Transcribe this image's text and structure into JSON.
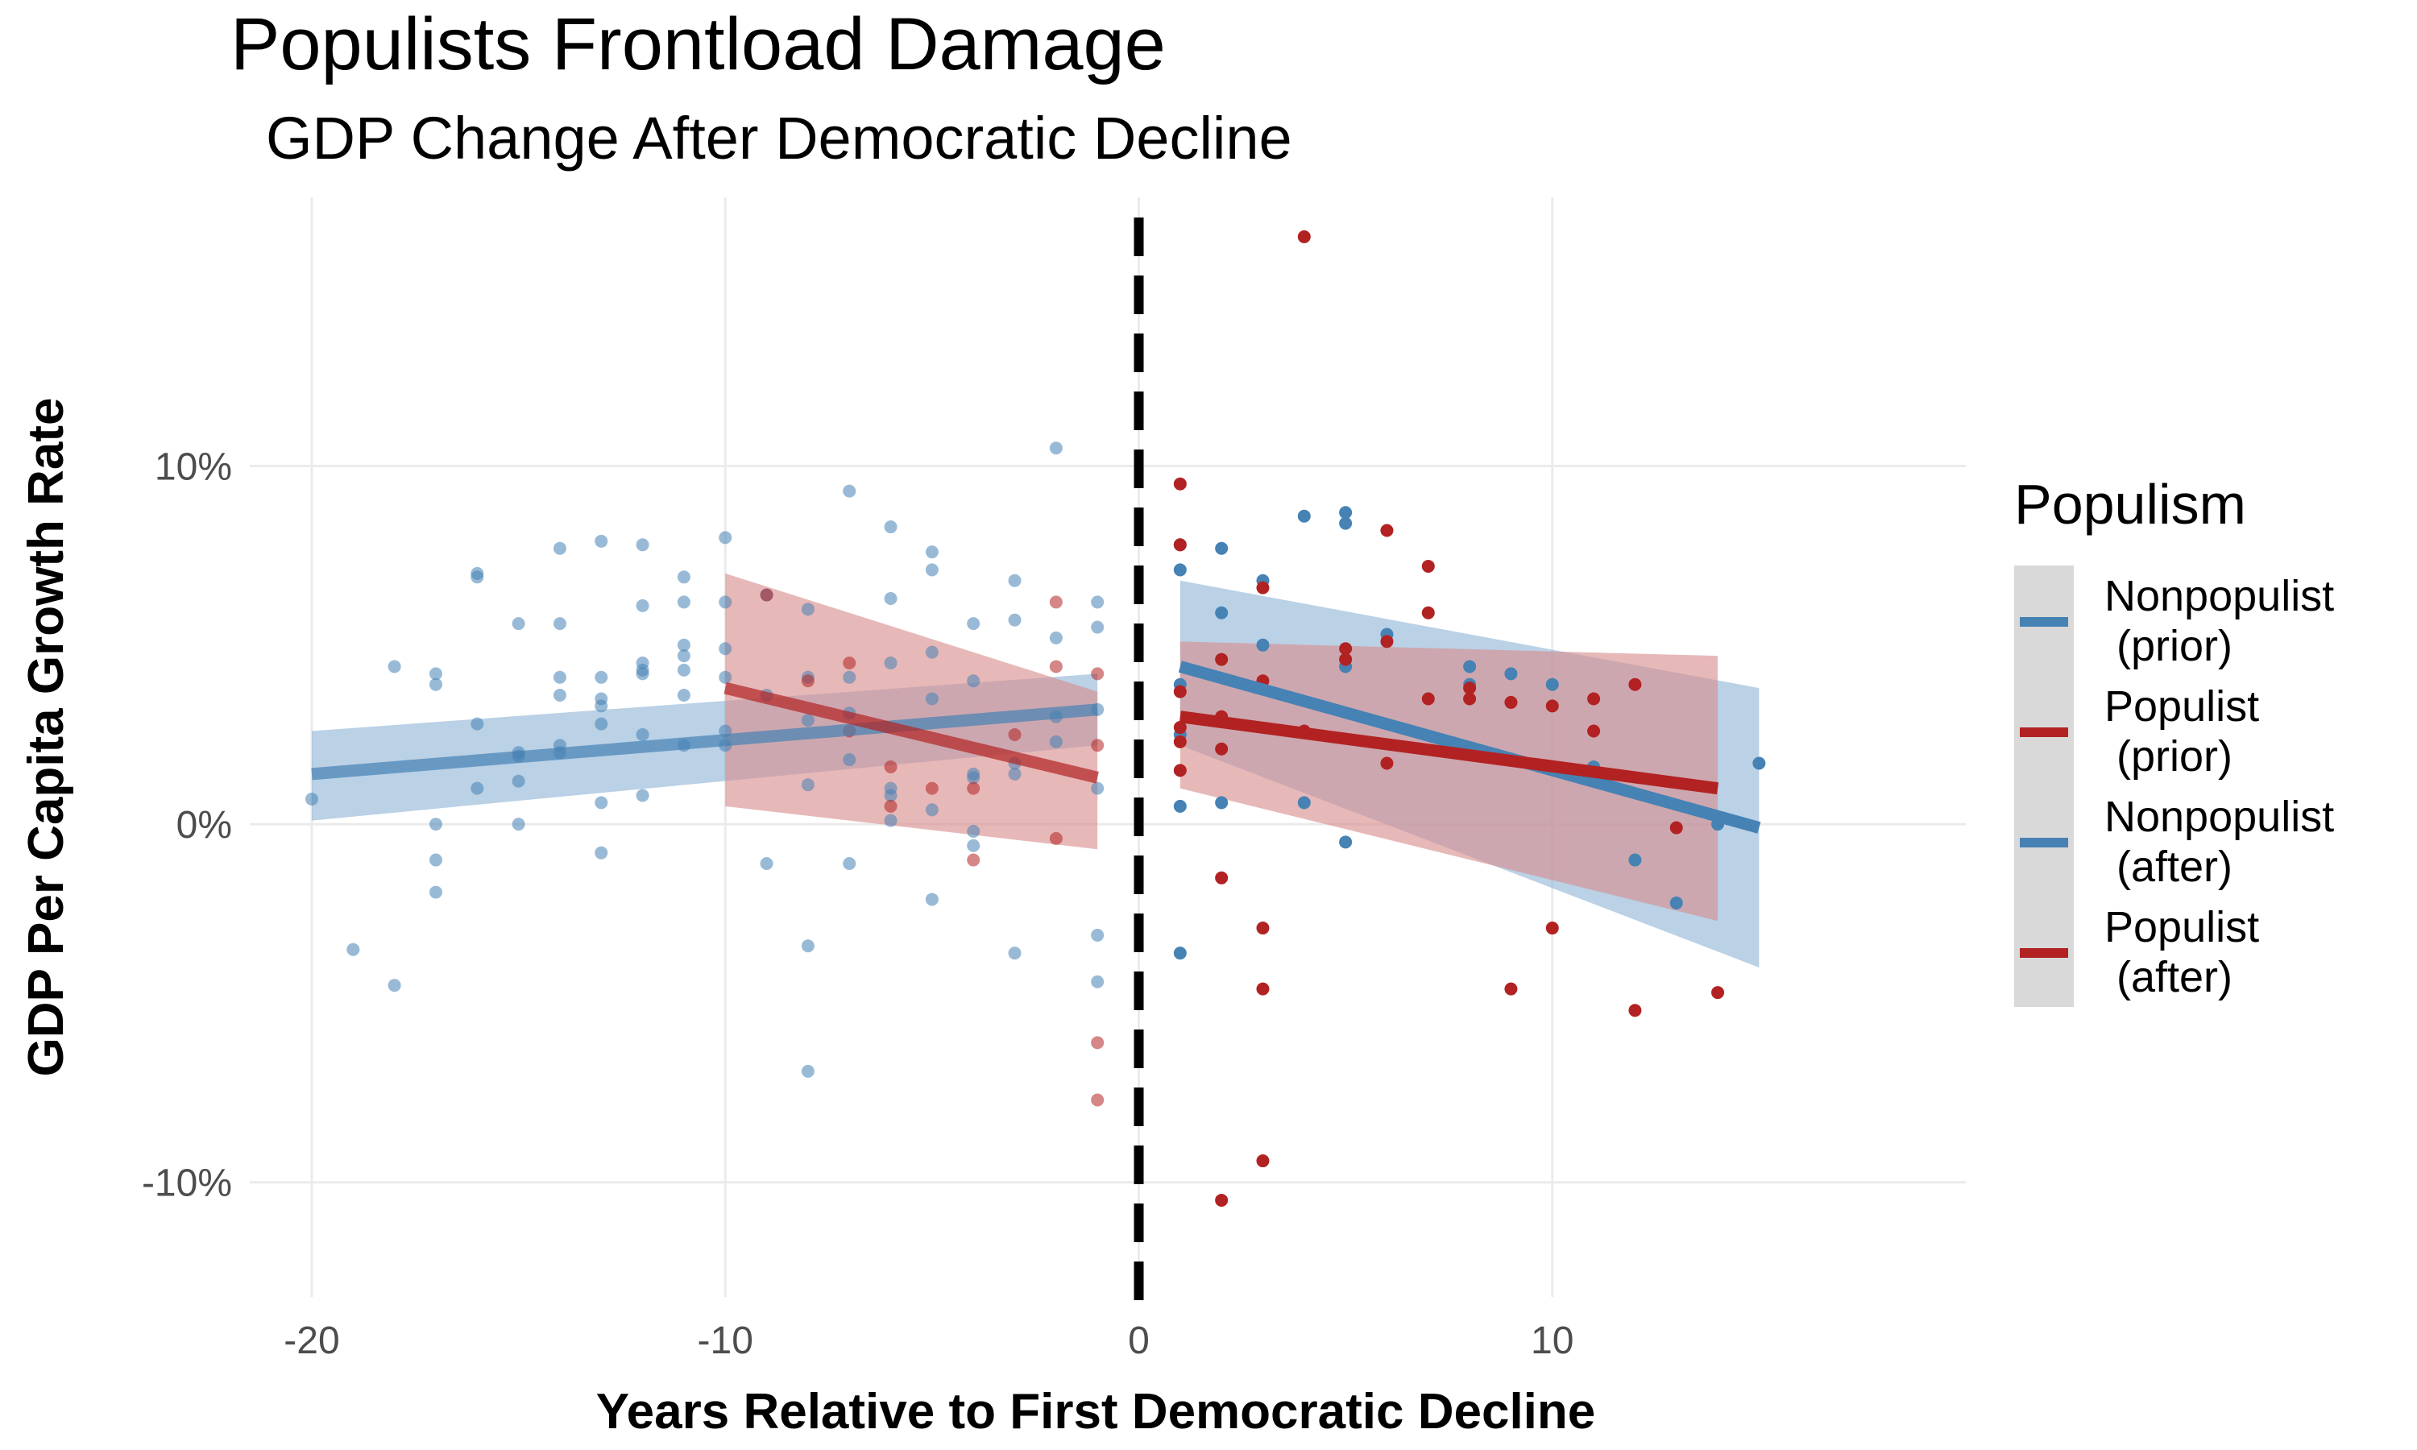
{
  "chart_data": {
    "type": "scatter",
    "title": "Populists Frontload Damage",
    "subtitle": "GDP Change After Democratic Decline",
    "xlabel": "Years Relative to First Democratic Decline",
    "ylabel": "GDP Per Capita Growth Rate",
    "xlim": [
      -21.5,
      20
    ],
    "ylim": [
      -13.2,
      17.5
    ],
    "x_ticks": [
      -20,
      -10,
      0,
      10
    ],
    "x_tick_labels": [
      "-20",
      "-10",
      "0",
      "10"
    ],
    "y_ticks": [
      -10,
      0,
      10
    ],
    "y_tick_labels": [
      "-10%",
      "0%",
      "10%"
    ],
    "grid": true,
    "reference_line": {
      "x": 0,
      "style": "dashed",
      "color": "#000000"
    },
    "legend": {
      "title": "Populism",
      "position": "right"
    },
    "colors": {
      "nonpopulist": "#4682b4",
      "populist": "#b22222",
      "ribbon_nonpopulist": "#8fb4d6",
      "ribbon_populist": "#d98c8c"
    },
    "series": [
      {
        "name": "Nonpopulist\n (prior)",
        "color": "#4682b4",
        "point_opacity": 0.55,
        "x": [
          -20,
          -19,
          -18,
          -18,
          -17,
          -17,
          -17,
          -17,
          -17,
          -16,
          -16,
          -16,
          -16,
          -15,
          -15,
          -15,
          -15,
          -15,
          -14,
          -14,
          -14,
          -14,
          -14,
          -14,
          -13,
          -13,
          -13,
          -13,
          -13,
          -13,
          -13,
          -12,
          -12,
          -12,
          -12,
          -12,
          -12,
          -12,
          -11,
          -11,
          -11,
          -11,
          -11,
          -11,
          -11,
          -10,
          -10,
          -10,
          -10,
          -10,
          -10,
          -9,
          -9,
          -9,
          -8,
          -8,
          -8,
          -8,
          -8,
          -8,
          -7,
          -7,
          -7,
          -7,
          -7,
          -6,
          -6,
          -6,
          -6,
          -6,
          -6,
          -5,
          -5,
          -5,
          -5,
          -5,
          -5,
          -4,
          -4,
          -4,
          -4,
          -4,
          -4,
          -3,
          -3,
          -3,
          -3,
          -3,
          -2,
          -2,
          -2,
          -2,
          -1,
          -1,
          -1,
          -1,
          -1,
          -1
        ],
        "y": [
          0.7,
          -3.5,
          -4.5,
          4.4,
          4.2,
          3.9,
          0.0,
          -1.0,
          -1.9,
          7.0,
          6.9,
          2.8,
          1.0,
          5.6,
          2.0,
          1.9,
          1.2,
          0.0,
          7.7,
          5.6,
          4.1,
          3.6,
          2.2,
          2.0,
          7.9,
          4.1,
          3.5,
          3.3,
          2.8,
          0.6,
          -0.8,
          7.8,
          6.1,
          4.5,
          4.3,
          4.2,
          2.5,
          0.8,
          6.9,
          6.2,
          5.0,
          4.7,
          4.3,
          3.6,
          2.2,
          8.0,
          6.2,
          4.9,
          4.1,
          2.6,
          2.2,
          6.4,
          3.6,
          -1.1,
          6.0,
          4.1,
          2.9,
          1.1,
          -3.4,
          -6.9,
          9.3,
          4.1,
          3.1,
          1.8,
          -1.1,
          8.3,
          6.3,
          4.5,
          1.0,
          0.8,
          0.1,
          7.6,
          7.1,
          4.8,
          3.5,
          0.4,
          -2.1,
          5.6,
          4.0,
          1.4,
          1.3,
          -0.2,
          -0.6,
          6.8,
          5.7,
          1.7,
          1.4,
          -3.6,
          10.5,
          5.2,
          3.0,
          2.3,
          6.2,
          5.5,
          1.0,
          -3.1,
          -4.4,
          3.2
        ]
      },
      {
        "name": "Populist\n (prior)",
        "color": "#b22222",
        "point_opacity": 0.55,
        "x": [
          -9,
          -8,
          -7,
          -7,
          -6,
          -6,
          -5,
          -4,
          -4,
          -3,
          -2,
          -2,
          -2,
          -1,
          -1,
          -1,
          -1
        ],
        "y": [
          6.4,
          4.0,
          4.5,
          2.6,
          1.6,
          0.5,
          1.0,
          1.0,
          -1.0,
          2.5,
          6.2,
          4.4,
          -0.4,
          4.2,
          2.2,
          -6.1,
          -7.7
        ]
      },
      {
        "name": "Nonpopulist\n (after)",
        "color": "#4682b4",
        "point_opacity": 1.0,
        "x": [
          1,
          1,
          1,
          1,
          1,
          1,
          2,
          2,
          2,
          2,
          3,
          3,
          4,
          4,
          5,
          5,
          5,
          5,
          6,
          8,
          8,
          9,
          10,
          11,
          12,
          13,
          14,
          15
        ],
        "y": [
          7.8,
          7.1,
          3.9,
          2.5,
          0.5,
          -3.6,
          7.7,
          5.9,
          3.0,
          0.6,
          6.8,
          5.0,
          8.6,
          0.6,
          8.7,
          8.4,
          4.4,
          -0.5,
          5.3,
          4.4,
          3.9,
          4.2,
          3.9,
          1.6,
          -1.0,
          -2.2,
          0.0,
          1.7
        ]
      },
      {
        "name": "Populist\n (after)",
        "color": "#b22222",
        "point_opacity": 1.0,
        "x": [
          1,
          1,
          1,
          1,
          1,
          1,
          2,
          2,
          2,
          2,
          2,
          3,
          3,
          3,
          3,
          3,
          4,
          4,
          5,
          5,
          6,
          6,
          6,
          7,
          7,
          7,
          8,
          8,
          9,
          9,
          10,
          10,
          11,
          11,
          12,
          12,
          13,
          14
        ],
        "y": [
          9.5,
          7.8,
          3.7,
          2.7,
          2.3,
          1.5,
          4.6,
          3.0,
          2.1,
          -1.5,
          -10.5,
          6.6,
          4.0,
          -2.9,
          -4.6,
          -9.4,
          16.4,
          2.6,
          4.9,
          4.6,
          8.2,
          5.1,
          1.7,
          7.2,
          5.9,
          3.5,
          3.8,
          3.5,
          3.4,
          -4.6,
          3.3,
          -2.9,
          3.5,
          2.6,
          3.9,
          -5.2,
          -0.1,
          -4.7
        ]
      }
    ],
    "fits": [
      {
        "series": "Nonpopulist\n (prior)",
        "x": [
          -20,
          -1
        ],
        "y": [
          1.4,
          3.2
        ],
        "lower": [
          0.1,
          2.2
        ],
        "upper": [
          2.6,
          4.2
        ]
      },
      {
        "series": "Populist\n (prior)",
        "x": [
          -10,
          -1
        ],
        "y": [
          3.8,
          1.3
        ],
        "lower": [
          0.5,
          -0.7
        ],
        "upper": [
          7.0,
          3.7
        ]
      },
      {
        "series": "Nonpopulist\n (after)",
        "x": [
          1,
          15
        ],
        "y": [
          4.4,
          -0.1
        ],
        "lower": [
          2.2,
          -4.0
        ],
        "upper": [
          6.8,
          3.8
        ]
      },
      {
        "series": "Populist\n (after)",
        "x": [
          1,
          14
        ],
        "y": [
          3.0,
          1.0
        ],
        "lower": [
          1.0,
          -2.7
        ],
        "upper": [
          5.1,
          4.7
        ]
      }
    ]
  }
}
